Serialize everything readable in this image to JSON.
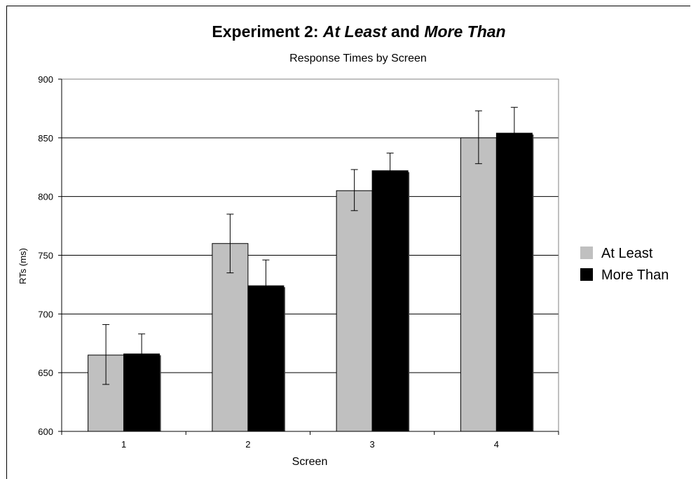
{
  "chart_data": {
    "type": "bar",
    "title_parts": [
      {
        "text": "Experiment 2: ",
        "italic": false
      },
      {
        "text": "At Least",
        "italic": true
      },
      {
        "text": " and ",
        "italic": false
      },
      {
        "text": "More Than",
        "italic": true
      }
    ],
    "subtitle": "Response Times by Screen",
    "xlabel": "Screen",
    "ylabel": "RTs (ms)",
    "categories": [
      "1",
      "2",
      "3",
      "4"
    ],
    "ylim": [
      600,
      900
    ],
    "yticks": [
      600,
      650,
      700,
      750,
      800,
      850,
      900
    ],
    "grid": true,
    "legend_position": "right",
    "series": [
      {
        "name": "At Least",
        "color": "#c0c0c0",
        "values": [
          665,
          760,
          805,
          850
        ],
        "error": [
          [
            640,
            691
          ],
          [
            735,
            785
          ],
          [
            788,
            823
          ],
          [
            828,
            873
          ]
        ]
      },
      {
        "name": "More Than",
        "color": "#000000",
        "values": [
          666,
          724,
          822,
          854
        ],
        "error": [
          [
            649,
            683
          ],
          [
            703,
            746
          ],
          [
            808,
            837
          ],
          [
            832,
            876
          ]
        ]
      }
    ]
  }
}
